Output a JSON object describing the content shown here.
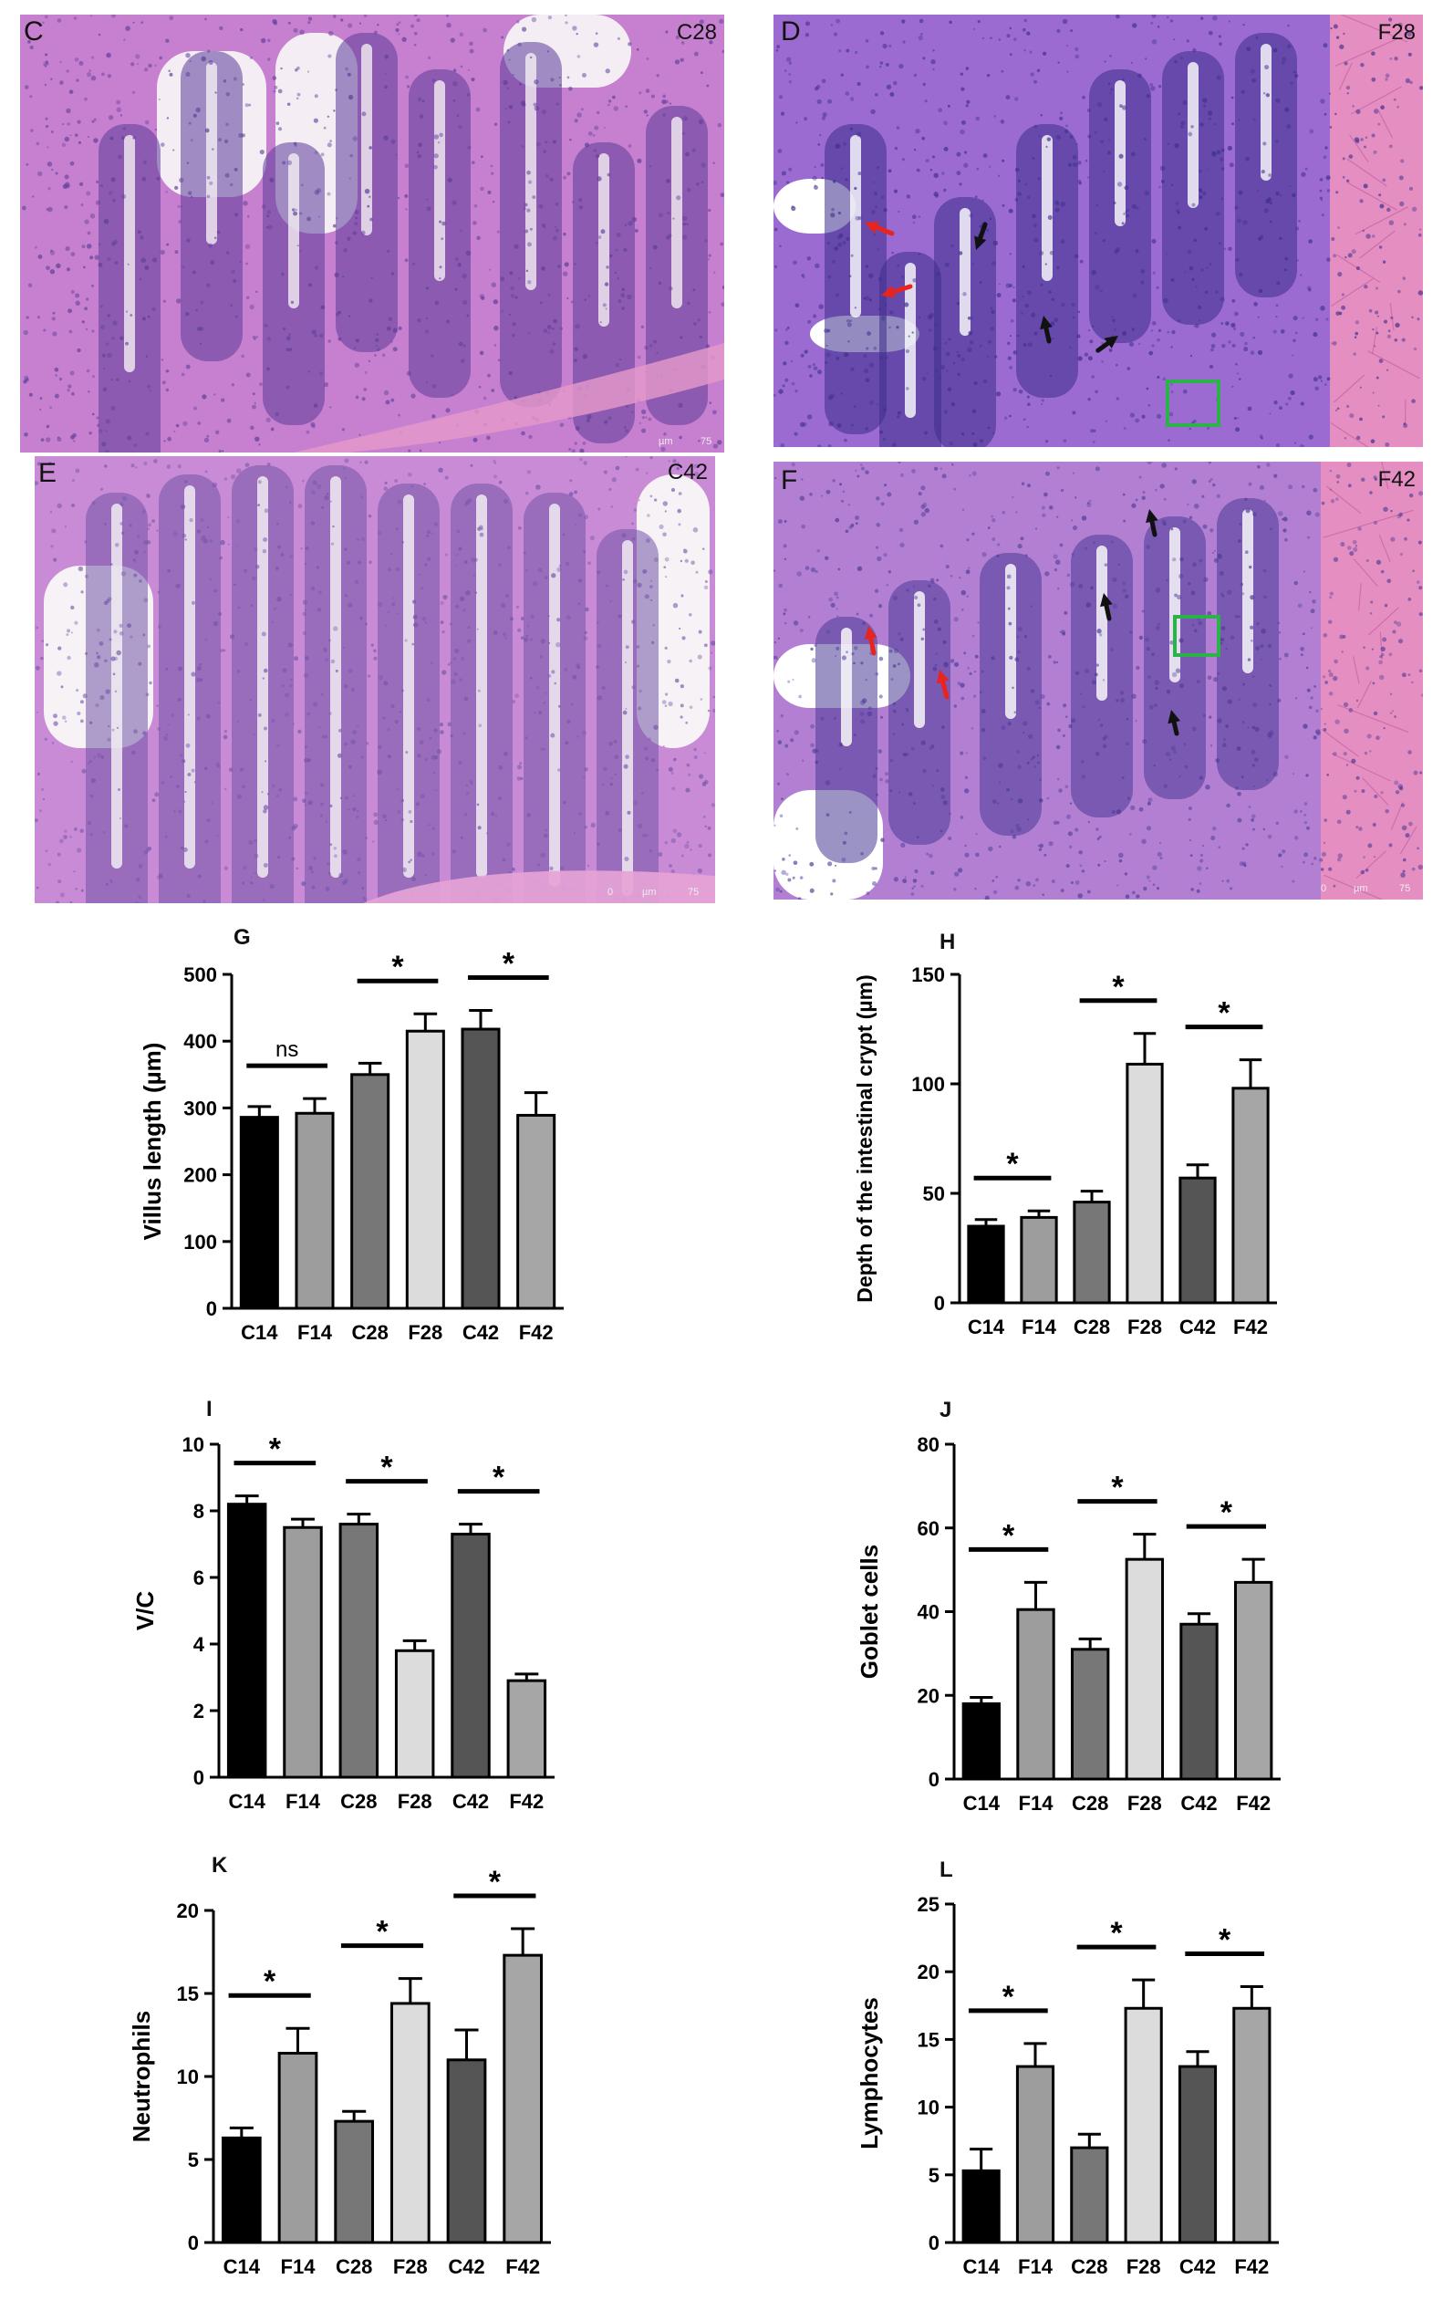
{
  "micrographs": [
    {
      "letter": "C",
      "tag": "C28",
      "scale": [
        "µm",
        "75"
      ],
      "base": "#c77fcf",
      "dark": "#5b3d99",
      "lumen": "#f4eef4"
    },
    {
      "letter": "D",
      "tag": "F28",
      "scale": [],
      "base": "#9c6bd1",
      "dark": "#3d2e8c",
      "lumen": "#ffffff"
    },
    {
      "letter": "E",
      "tag": "C42",
      "scale": [
        "0",
        "µm",
        "75"
      ],
      "base": "#c98bd6",
      "dark": "#7255a8",
      "lumen": "#f6f2f6"
    },
    {
      "letter": "F",
      "tag": "F42",
      "scale": [
        "0",
        "µm",
        "75"
      ],
      "base": "#b27fd3",
      "dark": "#4b3a96",
      "lumen": "#ffffff"
    }
  ],
  "annotation_colors": {
    "red_arrow": "#e8241f",
    "black_arrow": "#111111",
    "green_box": "#2bb34a"
  },
  "chart_data": [
    {
      "panel": "G",
      "type": "bar",
      "categories": [
        "C14",
        "F14",
        "C28",
        "F28",
        "C42",
        "F42"
      ],
      "values": [
        286,
        292,
        350,
        415,
        418,
        289
      ],
      "errors": [
        16,
        22,
        17,
        26,
        28,
        34
      ],
      "ylabel": "Villus length (µm)",
      "ylim": [
        0,
        500
      ],
      "yticks": [
        0,
        100,
        200,
        300,
        400,
        500
      ],
      "significance": [
        {
          "pair": [
            0,
            1
          ],
          "label": "ns"
        },
        {
          "pair": [
            2,
            3
          ],
          "label": "*"
        },
        {
          "pair": [
            4,
            5
          ],
          "label": "*"
        }
      ]
    },
    {
      "panel": "H",
      "type": "bar",
      "categories": [
        "C14",
        "F14",
        "C28",
        "F28",
        "C42",
        "F42"
      ],
      "values": [
        35,
        39,
        46,
        109,
        57,
        98
      ],
      "errors": [
        3,
        3,
        5,
        14,
        6,
        13
      ],
      "ylabel": "Depth of the intestinal crypt (µm)",
      "ylim": [
        0,
        150
      ],
      "yticks": [
        0,
        50,
        100,
        150
      ],
      "significance": [
        {
          "pair": [
            0,
            1
          ],
          "label": "*"
        },
        {
          "pair": [
            2,
            3
          ],
          "label": "*"
        },
        {
          "pair": [
            4,
            5
          ],
          "label": "*"
        }
      ]
    },
    {
      "panel": "I",
      "type": "bar",
      "categories": [
        "C14",
        "F14",
        "C28",
        "F28",
        "C42",
        "F42"
      ],
      "values": [
        8.2,
        7.5,
        7.6,
        3.8,
        7.3,
        2.9
      ],
      "errors": [
        0.25,
        0.25,
        0.3,
        0.3,
        0.3,
        0.2
      ],
      "ylabel": "V/C",
      "ylim": [
        0,
        10
      ],
      "yticks": [
        0,
        2,
        4,
        6,
        8,
        10
      ],
      "significance": [
        {
          "pair": [
            0,
            1
          ],
          "label": "*"
        },
        {
          "pair": [
            2,
            3
          ],
          "label": "*"
        },
        {
          "pair": [
            4,
            5
          ],
          "label": "*"
        }
      ]
    },
    {
      "panel": "J",
      "type": "bar",
      "categories": [
        "C14",
        "F14",
        "C28",
        "F28",
        "C42",
        "F42"
      ],
      "values": [
        18,
        40.5,
        31,
        52.5,
        37,
        47
      ],
      "errors": [
        1.5,
        6.5,
        2.5,
        6,
        2.5,
        5.5
      ],
      "ylabel": "Goblet cells",
      "ylim": [
        0,
        80
      ],
      "yticks": [
        0,
        20,
        40,
        60,
        80
      ],
      "significance": [
        {
          "pair": [
            0,
            1
          ],
          "label": "*"
        },
        {
          "pair": [
            2,
            3
          ],
          "label": "*"
        },
        {
          "pair": [
            4,
            5
          ],
          "label": "*"
        }
      ]
    },
    {
      "panel": "K",
      "type": "bar",
      "categories": [
        "C14",
        "F14",
        "C28",
        "F28",
        "C42",
        "F42"
      ],
      "values": [
        6.3,
        11.4,
        7.3,
        14.4,
        11,
        17.3
      ],
      "errors": [
        0.6,
        1.5,
        0.6,
        1.5,
        1.8,
        1.6
      ],
      "ylabel": "Neutrophils",
      "ylim": [
        0,
        20
      ],
      "yticks": [
        0,
        5,
        10,
        15,
        20
      ],
      "significance": [
        {
          "pair": [
            0,
            1
          ],
          "label": "*"
        },
        {
          "pair": [
            2,
            3
          ],
          "label": "*"
        },
        {
          "pair": [
            4,
            5
          ],
          "label": "*"
        }
      ]
    },
    {
      "panel": "L",
      "type": "bar",
      "categories": [
        "C14",
        "F14",
        "C28",
        "F28",
        "C42",
        "F42"
      ],
      "values": [
        5.3,
        13,
        7,
        17.3,
        13,
        17.3
      ],
      "errors": [
        1.6,
        1.7,
        1,
        2.1,
        1.1,
        1.6
      ],
      "ylabel": "Lymphocytes",
      "ylim": [
        0,
        25
      ],
      "yticks": [
        0,
        5,
        10,
        15,
        20,
        25
      ],
      "significance": [
        {
          "pair": [
            0,
            1
          ],
          "label": "*"
        },
        {
          "pair": [
            2,
            3
          ],
          "label": "*"
        },
        {
          "pair": [
            4,
            5
          ],
          "label": "*"
        }
      ]
    }
  ],
  "bar_colors": [
    "#000000",
    "#9d9d9d",
    "#777777",
    "#dcdcdc",
    "#555555",
    "#a6a6a6"
  ]
}
